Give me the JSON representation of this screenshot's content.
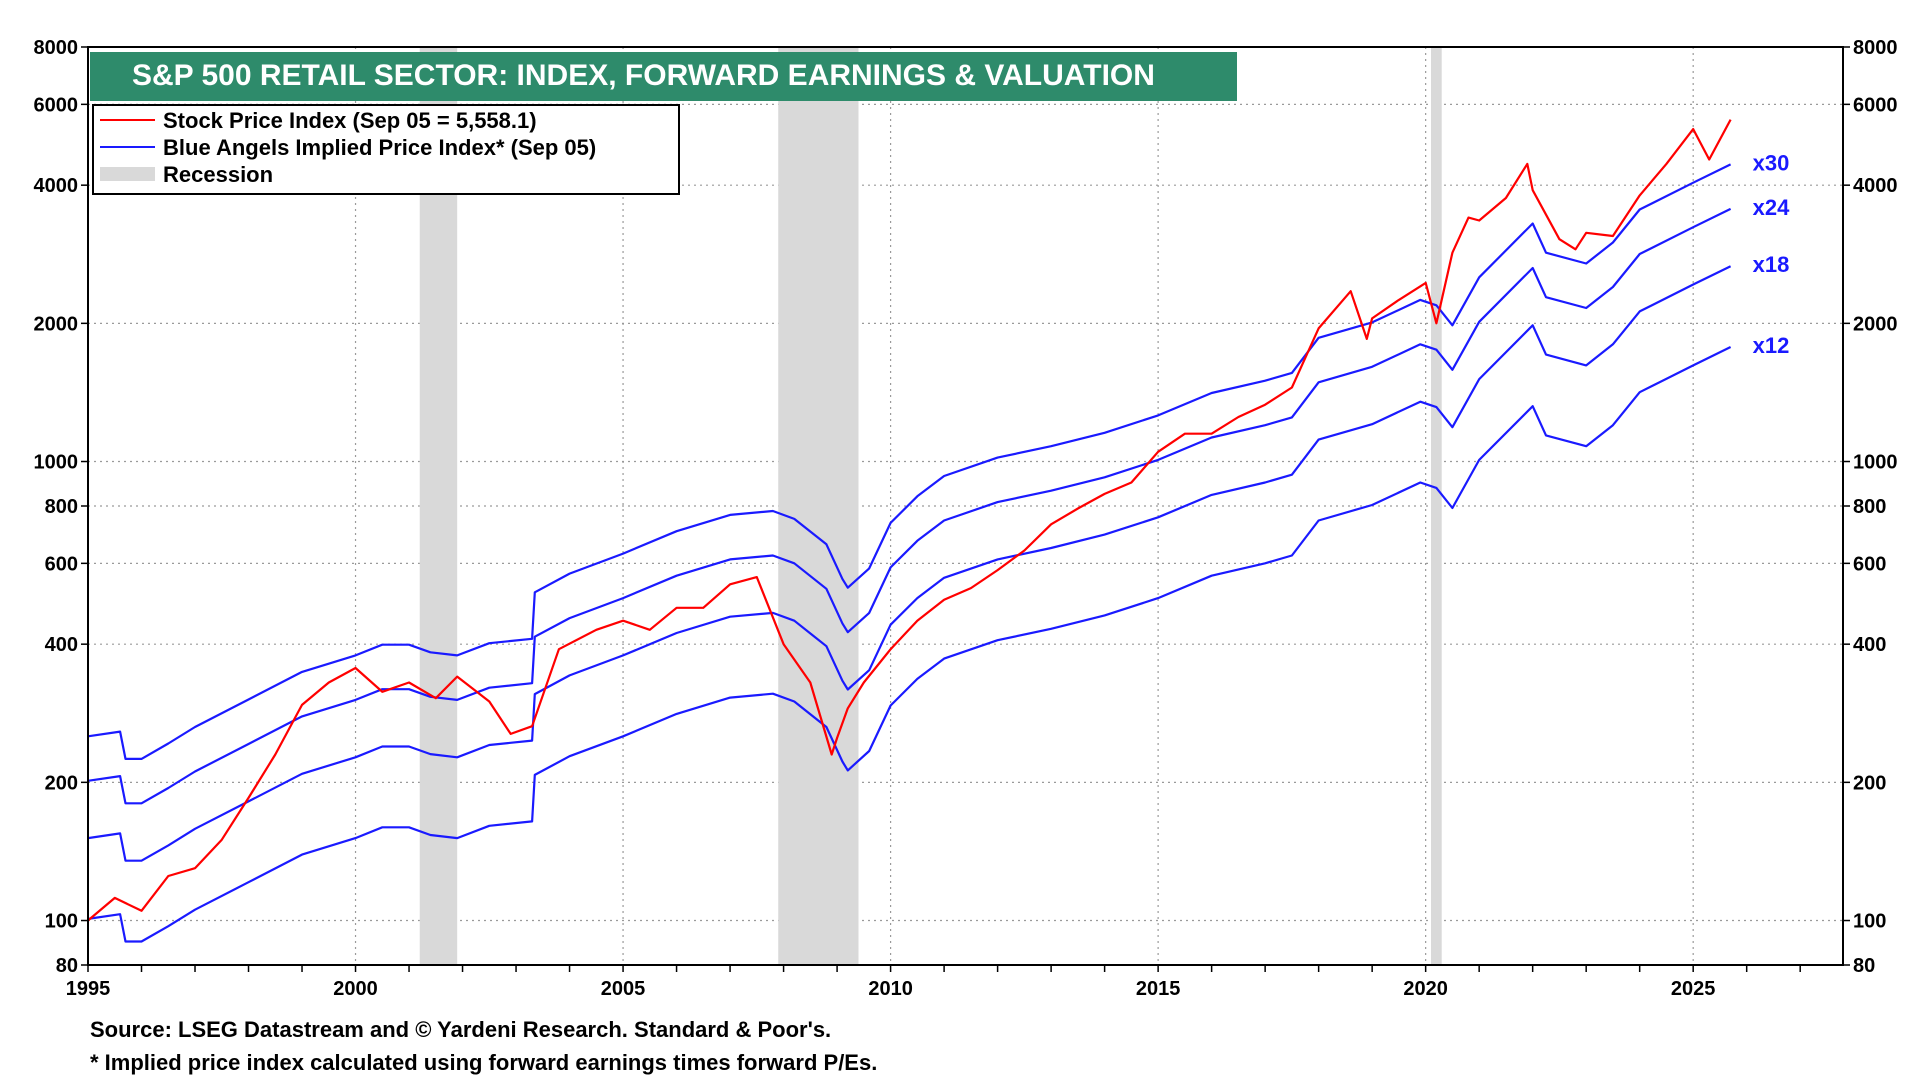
{
  "chart_data": {
    "type": "line",
    "title": "S&P 500 RETAIL SECTOR: INDEX, FORWARD EARNINGS & VALUATION",
    "y_scale": "log",
    "ylim": [
      80,
      8000
    ],
    "xlim": [
      1995,
      2027.8
    ],
    "x_ticks": [
      "1995",
      "2000",
      "2005",
      "2010",
      "2015",
      "2020",
      "2025"
    ],
    "y_ticks": [
      "80",
      "100",
      "200",
      "400",
      "600",
      "800",
      "1000",
      "2000",
      "4000",
      "6000",
      "8000"
    ],
    "grid": true,
    "legend_position": "top-left",
    "colors": {
      "stock": "#ff0000",
      "implied": "#1a1aff",
      "recession": "#d9d9d9",
      "title_bg": "#2e8b6b"
    },
    "legend": [
      "Stock Price Index (Sep 05 = 5,558.1)",
      "Blue Angels Implied Price Index* (Sep 05)",
      "Recession"
    ],
    "recessions": [
      [
        2001.2,
        2001.9
      ],
      [
        2007.9,
        2009.4
      ],
      [
        2020.1,
        2020.3
      ]
    ],
    "base_points": [
      [
        1995.0,
        8.4
      ],
      [
        1995.6,
        8.6
      ],
      [
        1995.7,
        7.5
      ],
      [
        1996.0,
        7.5
      ],
      [
        1996.5,
        8.1
      ],
      [
        1997.0,
        8.8
      ],
      [
        1998.0,
        10.1
      ],
      [
        1999.0,
        11.6
      ],
      [
        2000.0,
        12.6
      ],
      [
        2000.5,
        13.3
      ],
      [
        2001.0,
        13.3
      ],
      [
        2001.4,
        12.8
      ],
      [
        2001.9,
        12.6
      ],
      [
        2002.5,
        13.4
      ],
      [
        2003.3,
        13.7
      ],
      [
        2003.35,
        17.3
      ],
      [
        2004.0,
        19.0
      ],
      [
        2005.0,
        21.0
      ],
      [
        2006.0,
        23.5
      ],
      [
        2007.0,
        25.5
      ],
      [
        2007.8,
        26.0
      ],
      [
        2008.2,
        25.0
      ],
      [
        2008.8,
        22.0
      ],
      [
        2009.1,
        18.5
      ],
      [
        2009.2,
        17.7
      ],
      [
        2009.6,
        19.5
      ],
      [
        2010.0,
        24.5
      ],
      [
        2010.5,
        28.0
      ],
      [
        2011.0,
        31.0
      ],
      [
        2012.0,
        34.0
      ],
      [
        2013.0,
        36.0
      ],
      [
        2014.0,
        38.5
      ],
      [
        2015.0,
        42.0
      ],
      [
        2016.0,
        47.0
      ],
      [
        2017.0,
        50.0
      ],
      [
        2017.5,
        52.0
      ],
      [
        2018.0,
        62.0
      ],
      [
        2019.0,
        67.0
      ],
      [
        2019.9,
        75.0
      ],
      [
        2020.2,
        73.0
      ],
      [
        2020.5,
        66.0
      ],
      [
        2021.0,
        84.0
      ],
      [
        2022.0,
        110.0
      ],
      [
        2022.25,
        95.0
      ],
      [
        2023.0,
        90.0
      ],
      [
        2023.5,
        100.0
      ],
      [
        2024.0,
        118.0
      ],
      [
        2025.0,
        135.0
      ],
      [
        2025.7,
        148.0
      ]
    ],
    "series": [
      {
        "name": "Stock Price Index (Sep 05 = 5,558.1)",
        "color": "#ff0000",
        "x": [
          1995.0,
          1995.5,
          1996.0,
          1996.5,
          1997.0,
          1997.5,
          1998.0,
          1998.5,
          1999.0,
          1999.5,
          2000.0,
          2000.5,
          2001.0,
          2001.5,
          2001.9,
          2002.5,
          2002.9,
          2003.3,
          2003.8,
          2004.5,
          2005.0,
          2005.5,
          2006.0,
          2006.5,
          2007.0,
          2007.5,
          2008.0,
          2008.5,
          2008.9,
          2009.0,
          2009.2,
          2009.5,
          2010.0,
          2010.5,
          2011.0,
          2011.5,
          2012.0,
          2012.5,
          2013.0,
          2013.5,
          2014.0,
          2014.5,
          2015.0,
          2015.5,
          2016.0,
          2016.5,
          2017.0,
          2017.5,
          2018.0,
          2018.6,
          2018.9,
          2019.0,
          2019.5,
          2020.0,
          2020.2,
          2020.5,
          2020.8,
          2021.0,
          2021.5,
          2021.9,
          2022.0,
          2022.5,
          2022.8,
          2023.0,
          2023.5,
          2024.0,
          2024.5,
          2025.0,
          2025.3,
          2025.7
        ],
        "values": [
          100,
          112,
          105,
          125,
          130,
          150,
          185,
          230,
          295,
          330,
          355,
          315,
          330,
          305,
          340,
          300,
          255,
          265,
          390,
          430,
          450,
          430,
          480,
          480,
          540,
          560,
          400,
          330,
          230,
          250,
          290,
          330,
          390,
          450,
          500,
          530,
          580,
          640,
          730,
          790,
          850,
          900,
          1050,
          1150,
          1150,
          1250,
          1330,
          1450,
          1950,
          2350,
          1850,
          2050,
          2250,
          2450,
          2000,
          2850,
          3400,
          3350,
          3750,
          4450,
          3900,
          3050,
          2900,
          3150,
          3100,
          3800,
          4450,
          5300,
          4550,
          5558
        ]
      },
      {
        "name": "x30",
        "label": "x30",
        "multiplier": 30,
        "color": "#1a1aff"
      },
      {
        "name": "x24",
        "label": "x24",
        "multiplier": 24,
        "color": "#1a1aff"
      },
      {
        "name": "x18",
        "label": "x18",
        "multiplier": 18,
        "color": "#1a1aff"
      },
      {
        "name": "x12",
        "label": "x12",
        "multiplier": 12,
        "color": "#1a1aff"
      }
    ],
    "footer": [
      "Source: LSEG Datastream and © Yardeni Research. Standard & Poor's.",
      "* Implied price index calculated using forward earnings times forward P/Es."
    ]
  }
}
